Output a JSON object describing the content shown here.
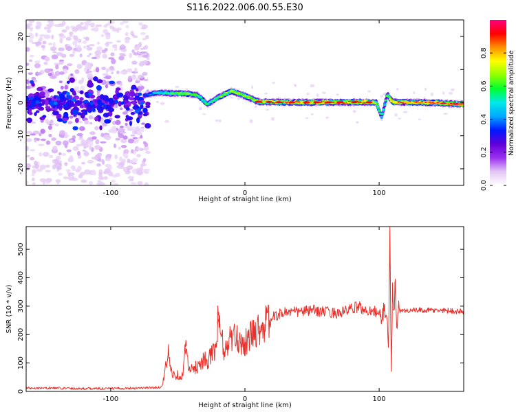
{
  "figure": {
    "title": "S116.2022.006.00.55.E30"
  },
  "chart_data": [
    {
      "type": "heatmap",
      "panel": "spectrogram",
      "xlabel": "Height of straight line (km)",
      "ylabel": "Frequency (Hz)",
      "xlim": [
        -163,
        163
      ],
      "ylim": [
        -25,
        25
      ],
      "xticks": [
        -100,
        0,
        100
      ],
      "yticks": [
        -20,
        -10,
        0,
        10,
        20
      ],
      "colorbar": {
        "label": "Normalized spectral amplitude",
        "range": [
          0.0,
          1.0
        ],
        "ticks": [
          0.0,
          0.2,
          0.4,
          0.6,
          0.8
        ],
        "colormap": [
          "#ffffff",
          "#e2c6f5",
          "#9b30f0",
          "#6000d8",
          "#0018ff",
          "#00a8ff",
          "#00e8e8",
          "#00ff30",
          "#90ff00",
          "#ffff00",
          "#ff9000",
          "#ff0000",
          "#ff0080"
        ]
      },
      "ridge": [
        {
          "x": -75,
          "f": 2.2,
          "a": 0.35
        },
        {
          "x": -65,
          "f": 3.0,
          "a": 0.5
        },
        {
          "x": -55,
          "f": 2.8,
          "a": 0.6
        },
        {
          "x": -45,
          "f": 2.8,
          "a": 0.65
        },
        {
          "x": -35,
          "f": 2.2,
          "a": 0.6
        },
        {
          "x": -28,
          "f": -0.5,
          "a": 0.55
        },
        {
          "x": -20,
          "f": 1.5,
          "a": 0.6
        },
        {
          "x": -10,
          "f": 3.5,
          "a": 0.65
        },
        {
          "x": 0,
          "f": 2.0,
          "a": 0.7
        },
        {
          "x": 10,
          "f": 0.3,
          "a": 0.8
        },
        {
          "x": 30,
          "f": 0.1,
          "a": 0.85
        },
        {
          "x": 60,
          "f": 0.1,
          "a": 0.85
        },
        {
          "x": 90,
          "f": 0.2,
          "a": 0.85
        },
        {
          "x": 98,
          "f": 0.0,
          "a": 0.7
        },
        {
          "x": 102,
          "f": -4.5,
          "a": 0.5
        },
        {
          "x": 106,
          "f": 2.5,
          "a": 0.6
        },
        {
          "x": 110,
          "f": 0.2,
          "a": 0.85
        },
        {
          "x": 140,
          "f": 0.0,
          "a": 0.85
        },
        {
          "x": 163,
          "f": -0.5,
          "a": 0.9
        }
      ]
    },
    {
      "type": "line",
      "panel": "snr",
      "xlabel": "Height of straight line (km)",
      "ylabel": "SNR (10 * v/v)",
      "xlim": [
        -163,
        163
      ],
      "ylim": [
        0,
        580
      ],
      "xticks": [
        -100,
        0,
        100
      ],
      "yticks": [
        0,
        100,
        200,
        300,
        400,
        500
      ],
      "color": "#e8302a",
      "series": [
        {
          "x": [
            -163,
            -140,
            -120,
            -100,
            -80,
            -70,
            -62,
            -60,
            -57,
            -55,
            -52,
            -50,
            -48,
            -46,
            -44,
            -42,
            -40,
            -35,
            -30,
            -28,
            -25,
            -22,
            -20,
            -15,
            -12,
            -10,
            -5,
            0,
            5,
            10,
            15,
            20,
            25,
            30,
            40,
            50,
            60,
            70,
            80,
            85,
            90,
            95,
            100,
            102,
            104,
            106,
            107,
            108,
            109,
            110,
            111,
            112,
            113,
            114,
            115,
            120,
            130,
            140,
            150,
            163
          ],
          "y": [
            12,
            12,
            10,
            10,
            12,
            13,
            15,
            60,
            135,
            70,
            55,
            60,
            50,
            60,
            180,
            70,
            75,
            90,
            120,
            80,
            150,
            130,
            255,
            130,
            180,
            190,
            180,
            170,
            200,
            220,
            235,
            260,
            270,
            280,
            280,
            285,
            280,
            275,
            290,
            300,
            280,
            290,
            270,
            250,
            300,
            250,
            120,
            580,
            70,
            350,
            280,
            395,
            200,
            300,
            280,
            285,
            285,
            285,
            285,
            280
          ]
        }
      ]
    }
  ]
}
